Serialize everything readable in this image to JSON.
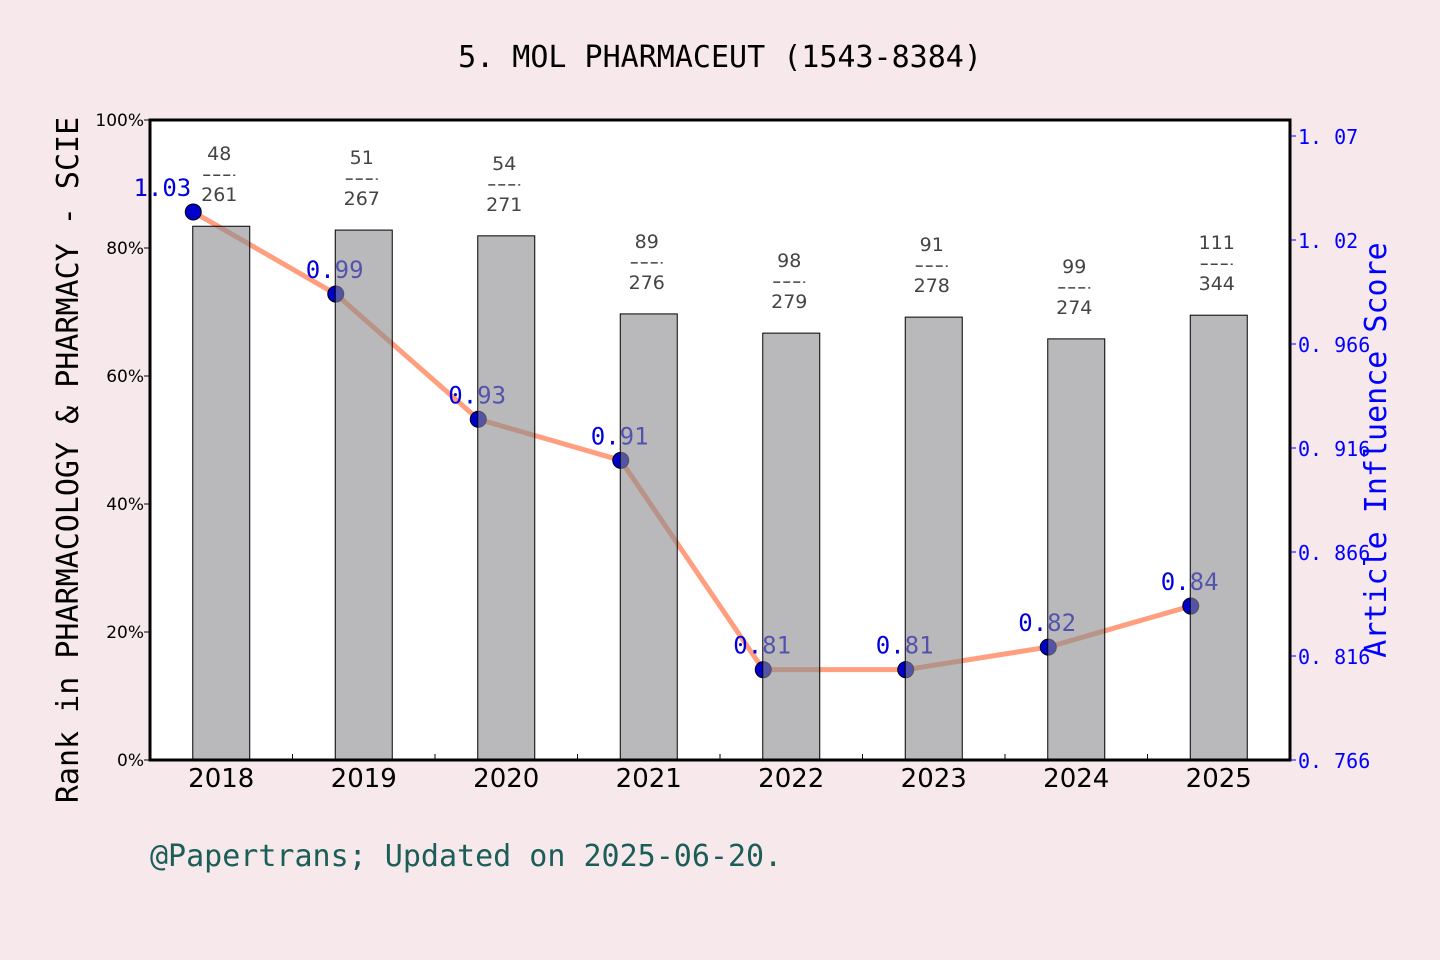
{
  "chart_data": {
    "type": "bar",
    "title": "5. MOL PHARMACEUT (1543-8384)",
    "ylabel": "Rank in PHARMACOLOGY & PHARMACY - SCIE",
    "y2label": "Article Influence Score",
    "footer": "@Papertrans; Updated on 2025-06-20.",
    "categories": [
      "2018",
      "2019",
      "2020",
      "2021",
      "2022",
      "2023",
      "2024",
      "2025"
    ],
    "ylim": [
      0,
      100
    ],
    "yticks": [
      "0%",
      "20%",
      "40%",
      "60%",
      "80%",
      "100%"
    ],
    "y2lim": [
      0.766,
      1.07
    ],
    "y2ticks": [
      "0.766",
      "0.816",
      "0.866",
      "0.916",
      "0.966",
      "1.02",
      "1.07"
    ],
    "bars": {
      "values": [
        83.4,
        82.8,
        81.9,
        69.7,
        66.7,
        69.2,
        65.8,
        69.5
      ],
      "rank": [
        "48",
        "51",
        "54",
        "89",
        "98",
        "91",
        "99",
        "111"
      ],
      "total": [
        "261",
        "267",
        "271",
        "276",
        "279",
        "278",
        "274",
        "344"
      ],
      "color": "#b8b9bb"
    },
    "line": {
      "values": [
        1.033,
        0.993,
        0.932,
        0.912,
        0.81,
        0.81,
        0.821,
        0.841
      ],
      "labels": [
        "1.03",
        "0.99",
        "0.93",
        "0.91",
        "0.81",
        "0.81",
        "0.82",
        "0.84"
      ],
      "color": "#ff9f7f",
      "marker_color": "#0000cc"
    },
    "colors": {
      "background": "#f7e8ec",
      "axis2": "#0000ff",
      "footer": "#1a5e57"
    }
  }
}
